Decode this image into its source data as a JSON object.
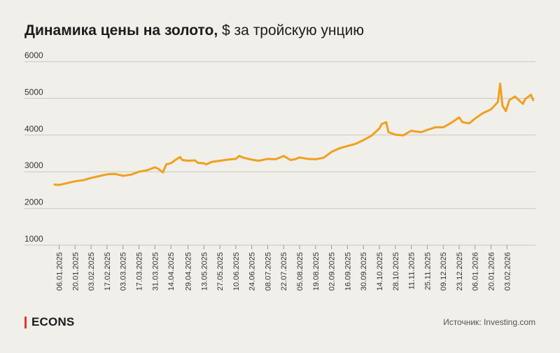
{
  "header": {
    "title_bold": "Динамика цены на золото,",
    "title_rest": " $ за тройскую унцию"
  },
  "footer": {
    "brand": "ECONS",
    "source": "Источник: Investing.com"
  },
  "colors": {
    "line": "#f0a01e",
    "grid": "#c9c7c2",
    "brand_accent": "#e5352b",
    "background": "#f1efea"
  },
  "chart_data": {
    "type": "line",
    "title": "Динамика цены на золото, $ за тройскую унцию",
    "xlabel": "",
    "ylabel": "",
    "ylim": [
      1000,
      6000
    ],
    "yticks": [
      1000,
      2000,
      3000,
      4000,
      5000,
      6000
    ],
    "xlim": [
      "2025-01-02",
      "2026-02-28"
    ],
    "xticks": [
      "06.01.2025",
      "20.01.2025",
      "03.02.2025",
      "17.02.2025",
      "03.03.2025",
      "17.03.2025",
      "31.03.2025",
      "14.04.2025",
      "29.04.2025",
      "13.05.2025",
      "27.05.2025",
      "10.06.2025",
      "24.06.2025",
      "08.07.2025",
      "22.07.2025",
      "05.08.2025",
      "19.08.2025",
      "02.09.2025",
      "16.09.2025",
      "30.09.2025",
      "14.10.2025",
      "28.10.2025",
      "11.11.2025",
      "25.11.2025",
      "09.12.2025",
      "23.12.2025",
      "06.01.2026",
      "20.01.2026",
      "03.02.2026"
    ],
    "grid": "horizontal",
    "series": [
      {
        "x": [
          "2025-01-02",
          "2025-01-06",
          "2025-01-13",
          "2025-01-20",
          "2025-01-27",
          "2025-02-03",
          "2025-02-10",
          "2025-02-17",
          "2025-02-24",
          "2025-03-03",
          "2025-03-10",
          "2025-03-17",
          "2025-03-24",
          "2025-03-31",
          "2025-04-03",
          "2025-04-07",
          "2025-04-10",
          "2025-04-14",
          "2025-04-18",
          "2025-04-22",
          "2025-04-24",
          "2025-04-29",
          "2025-05-05",
          "2025-05-08",
          "2025-05-13",
          "2025-05-15",
          "2025-05-20",
          "2025-05-27",
          "2025-06-03",
          "2025-06-10",
          "2025-06-13",
          "2025-06-17",
          "2025-06-24",
          "2025-06-30",
          "2025-07-08",
          "2025-07-15",
          "2025-07-22",
          "2025-07-28",
          "2025-08-01",
          "2025-08-05",
          "2025-08-12",
          "2025-08-19",
          "2025-08-26",
          "2025-09-02",
          "2025-09-09",
          "2025-09-16",
          "2025-09-23",
          "2025-09-30",
          "2025-10-07",
          "2025-10-14",
          "2025-10-16",
          "2025-10-20",
          "2025-10-22",
          "2025-10-28",
          "2025-11-04",
          "2025-11-11",
          "2025-11-14",
          "2025-11-20",
          "2025-11-25",
          "2025-12-02",
          "2025-12-09",
          "2025-12-16",
          "2025-12-23",
          "2025-12-26",
          "2026-01-01",
          "2026-01-06",
          "2026-01-13",
          "2026-01-20",
          "2026-01-26",
          "2026-01-28",
          "2026-01-30",
          "2026-02-02",
          "2026-02-05",
          "2026-02-10",
          "2026-02-17",
          "2026-02-19",
          "2026-02-24",
          "2026-02-26"
        ],
        "values": [
          2650,
          2640,
          2690,
          2740,
          2770,
          2830,
          2880,
          2930,
          2940,
          2890,
          2920,
          3000,
          3040,
          3120,
          3080,
          2980,
          3200,
          3230,
          3320,
          3400,
          3320,
          3300,
          3310,
          3240,
          3230,
          3200,
          3270,
          3300,
          3330,
          3350,
          3430,
          3380,
          3330,
          3300,
          3350,
          3340,
          3430,
          3320,
          3340,
          3390,
          3350,
          3340,
          3380,
          3540,
          3640,
          3700,
          3760,
          3860,
          3980,
          4180,
          4300,
          4350,
          4080,
          4010,
          3990,
          4120,
          4100,
          4080,
          4140,
          4210,
          4210,
          4330,
          4480,
          4350,
          4320,
          4450,
          4600,
          4700,
          4900,
          5400,
          4800,
          4650,
          4950,
          5050,
          4850,
          4980,
          5100,
          4950
        ]
      }
    ]
  }
}
